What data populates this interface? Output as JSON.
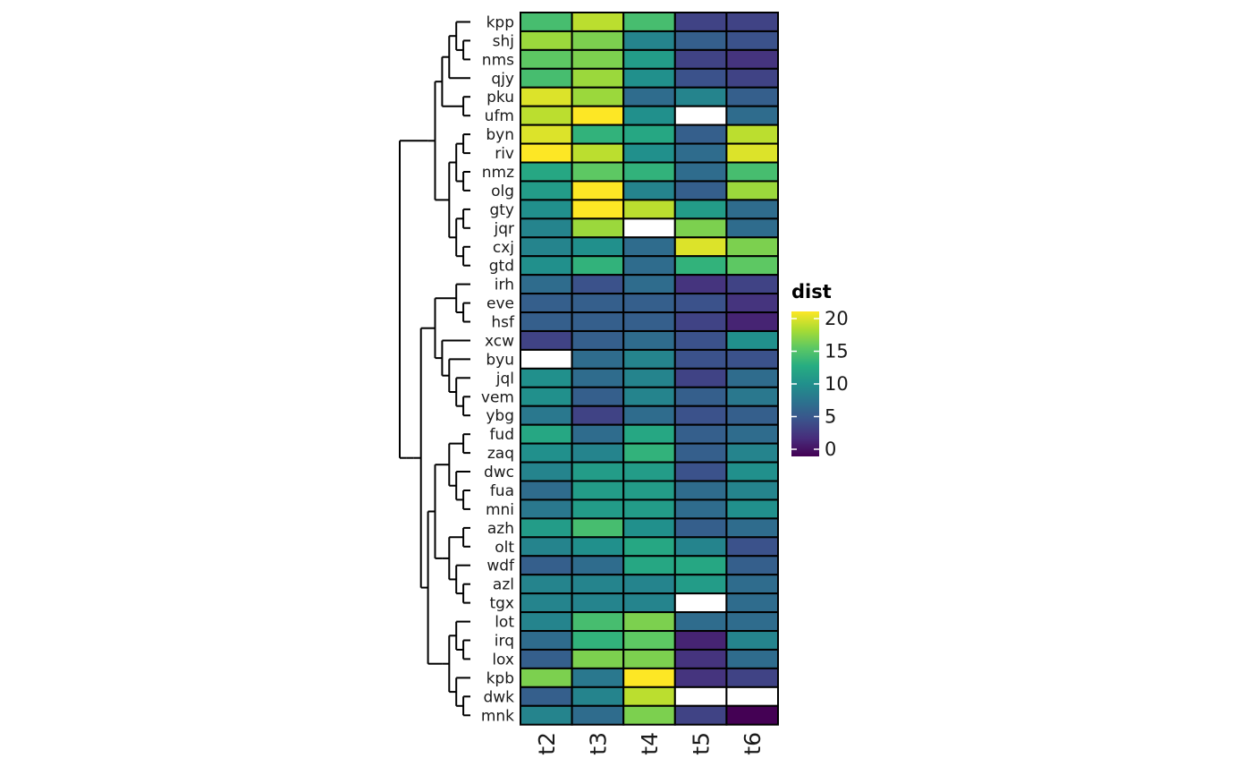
{
  "chart_data": {
    "type": "heatmap",
    "columns": [
      "t2",
      "t3",
      "t4",
      "t5",
      "t6"
    ],
    "rows": [
      "kpp",
      "shj",
      "nms",
      "qjy",
      "pku",
      "ufm",
      "byn",
      "riv",
      "nmz",
      "olg",
      "gty",
      "jqr",
      "cxj",
      "gtd",
      "irh",
      "eve",
      "hsf",
      "xcw",
      "byu",
      "jql",
      "vem",
      "ybg",
      "fud",
      "zaq",
      "dwc",
      "fua",
      "mni",
      "azh",
      "olt",
      "wdf",
      "azl",
      "tgx",
      "lot",
      "irq",
      "lox",
      "kpb",
      "dwk",
      "mnk"
    ],
    "values": [
      [
        14,
        18,
        14,
        4,
        4
      ],
      [
        17,
        16,
        9,
        6,
        5
      ],
      [
        15,
        16,
        11,
        4,
        3
      ],
      [
        14,
        17,
        10,
        5,
        4
      ],
      [
        19,
        17,
        7,
        9,
        6
      ],
      [
        18,
        20,
        10,
        null,
        7
      ],
      [
        19,
        13,
        12,
        6,
        18
      ],
      [
        20,
        18,
        10,
        7,
        19
      ],
      [
        12,
        15,
        13,
        7,
        14
      ],
      [
        11,
        20,
        9,
        6,
        17
      ],
      [
        10,
        20,
        18,
        11,
        7
      ],
      [
        9,
        17,
        null,
        16,
        7
      ],
      [
        9,
        10,
        7,
        19,
        16
      ],
      [
        10,
        13,
        7,
        13,
        15
      ],
      [
        7,
        5,
        7,
        3,
        4
      ],
      [
        6,
        6,
        6,
        5,
        3
      ],
      [
        6,
        6,
        6,
        4,
        2
      ],
      [
        4,
        6,
        7,
        5,
        10
      ],
      [
        null,
        7,
        9,
        5,
        5
      ],
      [
        10,
        7,
        9,
        4,
        7
      ],
      [
        10,
        6,
        9,
        6,
        8
      ],
      [
        8,
        4,
        7,
        5,
        6
      ],
      [
        12,
        7,
        12,
        6,
        7
      ],
      [
        10,
        9,
        13,
        6,
        9
      ],
      [
        9,
        11,
        11,
        5,
        10
      ],
      [
        7,
        11,
        11,
        7,
        9
      ],
      [
        8,
        11,
        11,
        7,
        10
      ],
      [
        11,
        14,
        10,
        6,
        7
      ],
      [
        9,
        10,
        12,
        9,
        5
      ],
      [
        6,
        7,
        12,
        12,
        6
      ],
      [
        9,
        9,
        9,
        11,
        7
      ],
      [
        9,
        9,
        9,
        null,
        7
      ],
      [
        9,
        14,
        16,
        7,
        7
      ],
      [
        7,
        13,
        15,
        2,
        9
      ],
      [
        6,
        16,
        16,
        3,
        7
      ],
      [
        16,
        8,
        20,
        3,
        4
      ],
      [
        6,
        9,
        18,
        null,
        null
      ],
      [
        9,
        7,
        16,
        4,
        0
      ]
    ],
    "legend": {
      "title": "dist",
      "range": [
        0,
        20
      ],
      "ticks": [
        0,
        5,
        10,
        15,
        20
      ],
      "colorscale": "viridis",
      "na_color": "#ffffff"
    },
    "dendrogram": "rows"
  }
}
